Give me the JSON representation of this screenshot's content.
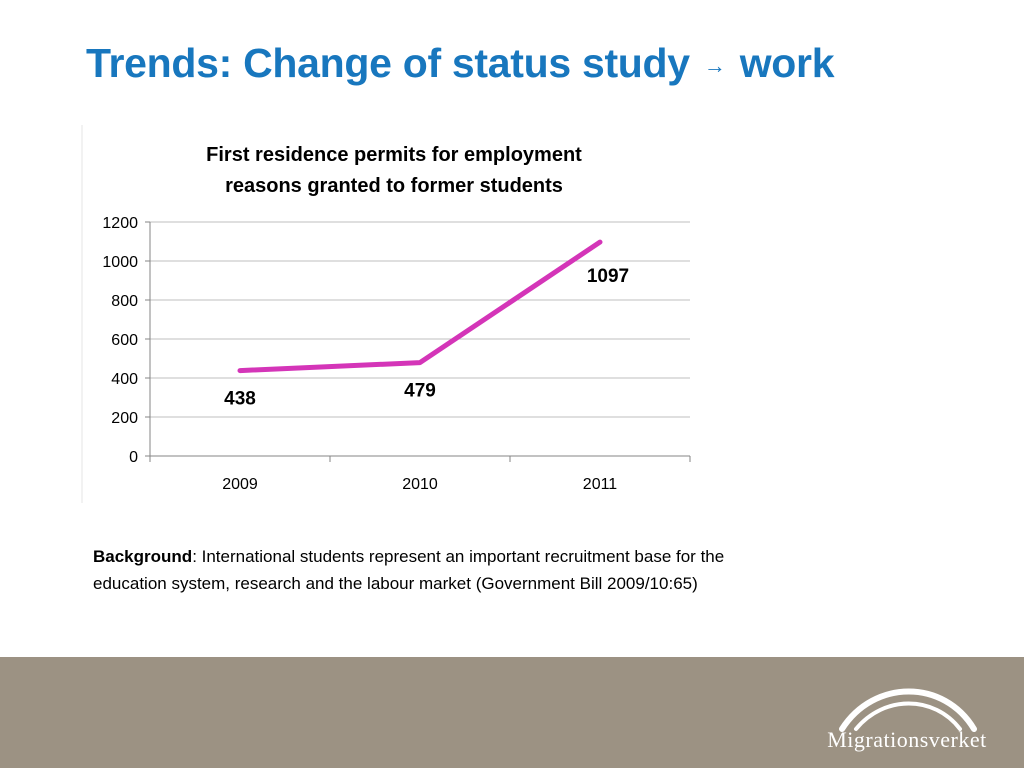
{
  "slide": {
    "title_main": "Trends: Change of status study",
    "title_arrow": "→",
    "title_end": "work"
  },
  "background": {
    "label": "Background",
    "text": ": International students represent an important recruitment base for the education system, research and the labour market (Government Bill 2009/10:65)"
  },
  "logo": {
    "text": "Migrationsverket"
  },
  "colors": {
    "title": "#1877be",
    "series": "#d435b8",
    "footer": "#9c9283",
    "grid": "#bfbfbf"
  },
  "chart_data": {
    "type": "line",
    "title": [
      "First residence permits for employment",
      "reasons granted to former students"
    ],
    "categories": [
      "2009",
      "2010",
      "2011"
    ],
    "series": [
      {
        "values": [
          438,
          479,
          1097
        ]
      }
    ],
    "data_labels": [
      "438",
      "479",
      "1097"
    ],
    "y_ticks": [
      "0",
      "200",
      "400",
      "600",
      "800",
      "1000",
      "1200"
    ],
    "ylim": [
      0,
      1200
    ],
    "grid": true,
    "legend": "none"
  }
}
